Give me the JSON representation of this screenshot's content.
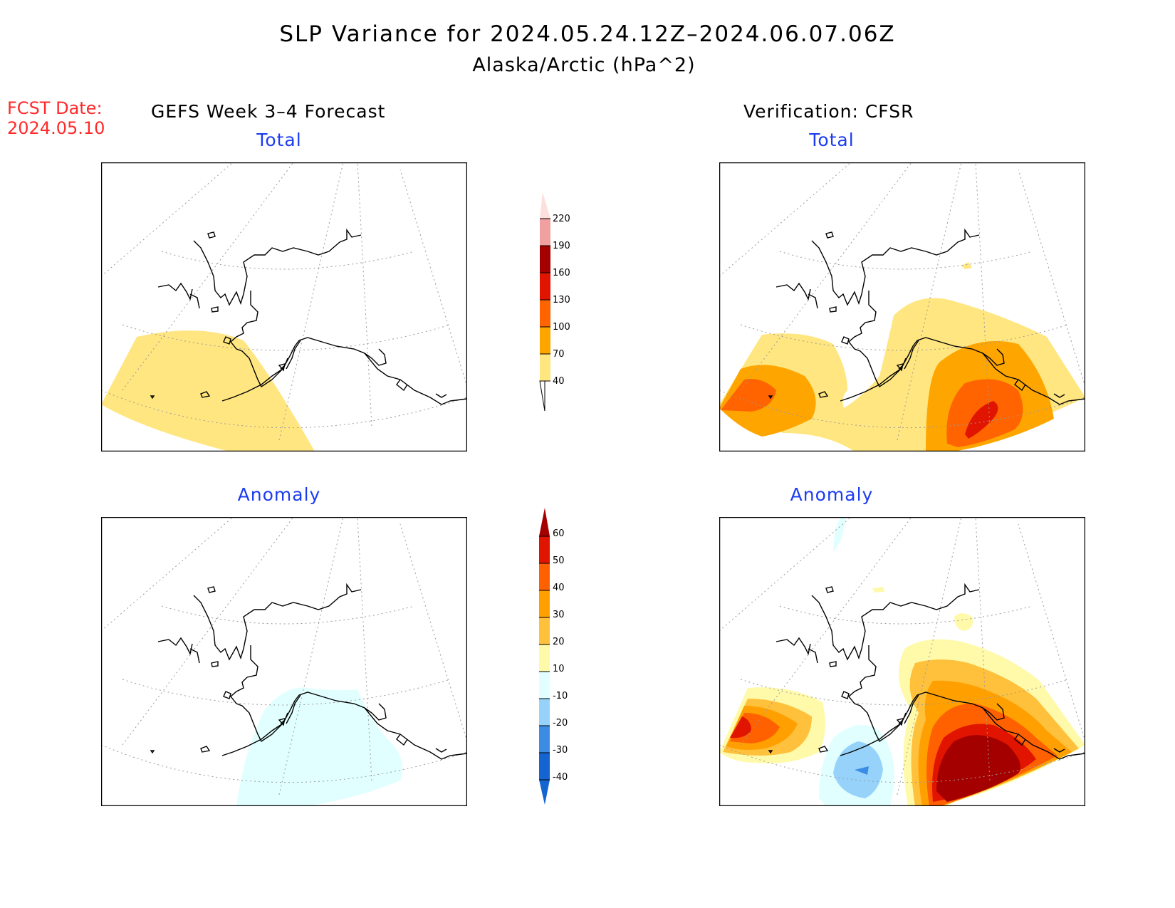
{
  "title": {
    "line1": "SLP Variance for 2024.05.24.12Z–2024.06.07.06Z",
    "line2": "Alaska/Arctic (hPa^2)"
  },
  "fcst_date": "FCST Date:\n2024.05.10",
  "columns": {
    "left": "GEFS Week 3–4 Forecast",
    "right": "Verification: CFSR"
  },
  "panels": {
    "forecast_total": "Total",
    "verification_total": "Total",
    "forecast_anomaly": "Anomaly",
    "verification_anomaly": "Anomaly"
  },
  "colorbars": {
    "total": {
      "labels": [
        "40",
        "70",
        "100",
        "130",
        "160",
        "190",
        "220"
      ],
      "colors": [
        "#ffe680",
        "#ffa500",
        "#ff6400",
        "#e11400",
        "#a50000",
        "#f0a0a0",
        "#fde0dc"
      ]
    },
    "anomaly": {
      "labels": [
        "-40",
        "-30",
        "-20",
        "-10",
        "10",
        "20",
        "30",
        "40",
        "50",
        "60"
      ],
      "colors": [
        "#1464d2",
        "#3c8ce6",
        "#96d2fa",
        "#e1ffff",
        "#ffffff",
        "#fffaaa",
        "#ffc03c",
        "#ffa000",
        "#ff6000",
        "#e11400",
        "#a50000"
      ]
    }
  }
}
